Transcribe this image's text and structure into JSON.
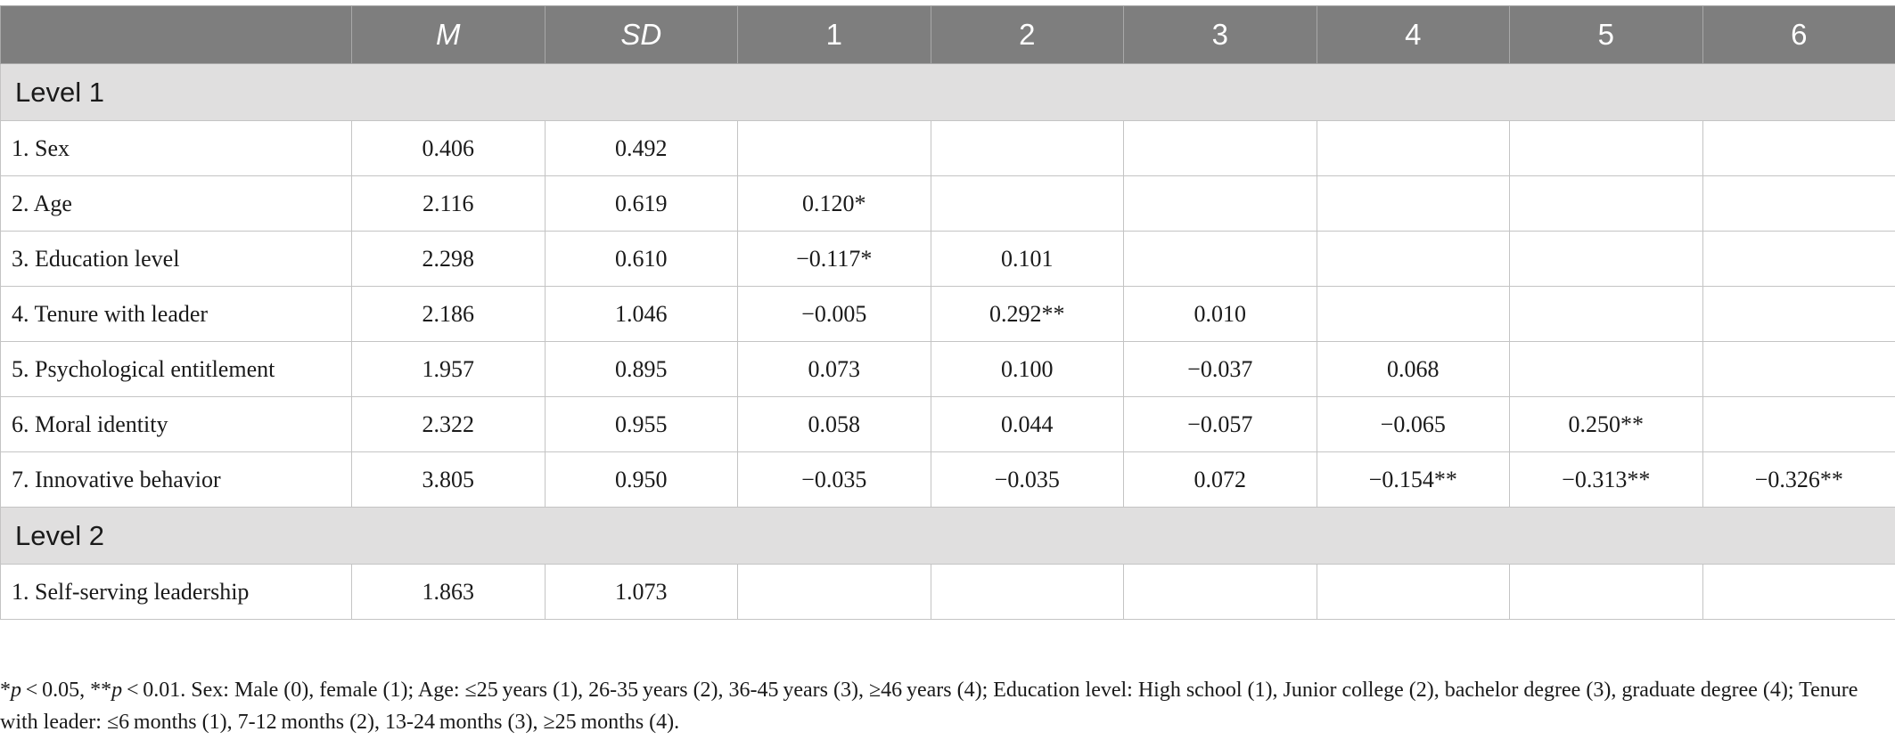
{
  "table": {
    "headers": [
      "",
      "M",
      "SD",
      "1",
      "2",
      "3",
      "4",
      "5",
      "6"
    ],
    "sections": [
      {
        "title": "Level 1",
        "rows": [
          [
            "1. Sex",
            "0.406",
            "0.492",
            "",
            "",
            "",
            "",
            "",
            ""
          ],
          [
            "2. Age",
            "2.116",
            "0.619",
            "0.120*",
            "",
            "",
            "",
            "",
            ""
          ],
          [
            "3. Education level",
            "2.298",
            "0.610",
            "−0.117*",
            "0.101",
            "",
            "",
            "",
            ""
          ],
          [
            "4. Tenure with leader",
            "2.186",
            "1.046",
            "−0.005",
            "0.292**",
            "0.010",
            "",
            "",
            ""
          ],
          [
            "5. Psychological entitlement",
            "1.957",
            "0.895",
            "0.073",
            "0.100",
            "−0.037",
            "0.068",
            "",
            ""
          ],
          [
            "6. Moral identity",
            "2.322",
            "0.955",
            "0.058",
            "0.044",
            "−0.057",
            "−0.065",
            "0.250**",
            ""
          ],
          [
            "7. Innovative behavior",
            "3.805",
            "0.950",
            "−0.035",
            "−0.035",
            "0.072",
            "−0.154**",
            "−0.313**",
            "−0.326**"
          ]
        ]
      },
      {
        "title": "Level 2",
        "rows": [
          [
            "1. Self-serving leadership",
            "1.863",
            "1.073",
            "",
            "",
            "",
            "",
            "",
            ""
          ]
        ]
      }
    ]
  },
  "footnote": {
    "star1": "*",
    "p1": "p",
    "t1": " < 0.05, **",
    "p2": "p",
    "t2": " < 0.01. Sex: Male (0), female (1); Age: ≤25 years (1), 26-35 years (2), 36-45 years (3), ≥46 years (4); Education level: High school (1), Junior college (2), bachelor degree (3), graduate degree (4); Tenure with leader: ≤6 months (1), 7-12 months (2), 13-24 months (3), ≥25 months (4)."
  }
}
